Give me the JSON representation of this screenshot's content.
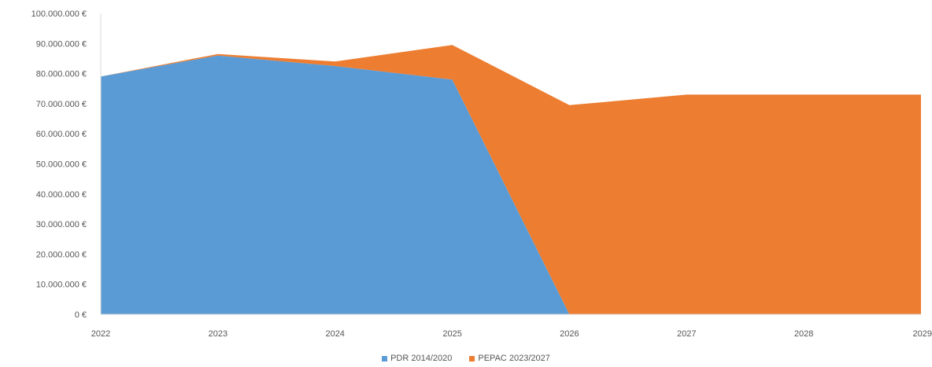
{
  "chart_data": {
    "type": "area",
    "stacked": true,
    "categories": [
      "2022",
      "2023",
      "2024",
      "2025",
      "2026",
      "2027",
      "2028",
      "2029"
    ],
    "series": [
      {
        "name": "PDR 2014/2020",
        "color": "#5b9bd5",
        "values": [
          79000000,
          86000000,
          82500000,
          78000000,
          0,
          0,
          0,
          0
        ]
      },
      {
        "name": "PEPAC 2023/2027",
        "color": "#ed7d31",
        "values": [
          0,
          500000,
          1500000,
          11500000,
          69500000,
          73000000,
          73000000,
          73000000
        ]
      }
    ],
    "ylim": [
      0,
      100000000
    ],
    "yticks": [
      0,
      10000000,
      20000000,
      30000000,
      40000000,
      50000000,
      60000000,
      70000000,
      80000000,
      90000000,
      100000000
    ],
    "ytick_labels": [
      "0 €",
      "10.000.000 €",
      "20.000.000 €",
      "30.000.000 €",
      "40.000.000 €",
      "50.000.000 €",
      "60.000.000 €",
      "70.000.000 €",
      "80.000.000 €",
      "90.000.000 €",
      "100.000.000 €"
    ],
    "grid": false,
    "legend_position": "bottom-center"
  }
}
